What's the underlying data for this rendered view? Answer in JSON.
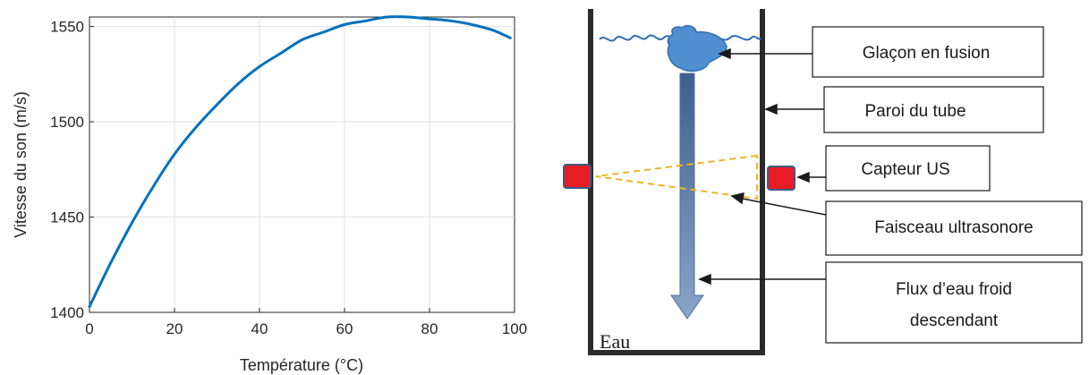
{
  "chart_data": {
    "type": "line",
    "title": "",
    "xlabel": "Température (°C)",
    "ylabel": "Vitesse du son (m/s)",
    "xlim": [
      0,
      100
    ],
    "ylim": [
      1400,
      1555
    ],
    "xticks": [
      0,
      20,
      40,
      60,
      80,
      100
    ],
    "yticks": [
      1400,
      1450,
      1500,
      1550
    ],
    "grid": true,
    "x": [
      0,
      5,
      10,
      15,
      20,
      25,
      30,
      35,
      40,
      45,
      50,
      55,
      60,
      65,
      70,
      75,
      80,
      85,
      90,
      95,
      99
    ],
    "y": [
      1403,
      1426,
      1447,
      1466,
      1483,
      1497,
      1509,
      1520,
      1529,
      1536,
      1543,
      1547,
      1551,
      1553,
      1555,
      1555,
      1554,
      1553,
      1551,
      1548,
      1544
    ],
    "color": "#0072BD"
  },
  "diagram": {
    "labels": {
      "melting_ice": "Glaçon en fusion",
      "tube_wall": "Paroi du tube",
      "us_sensor": "Capteur US",
      "ultrasonic_beam": "Faisceau ultrasonore",
      "cold_flow_line1": "Flux d’eau froid",
      "cold_flow_line2": "descendant",
      "water": "Eau"
    },
    "colors": {
      "tube": "#2b2b2b",
      "sensor": "#e81c24",
      "sensor_border": "#3a5d8a",
      "ice": "#4f8fcf",
      "water_surface": "#2f6fb3",
      "beam": "#f0b323",
      "flow_arrow": "#4f6f99"
    }
  }
}
